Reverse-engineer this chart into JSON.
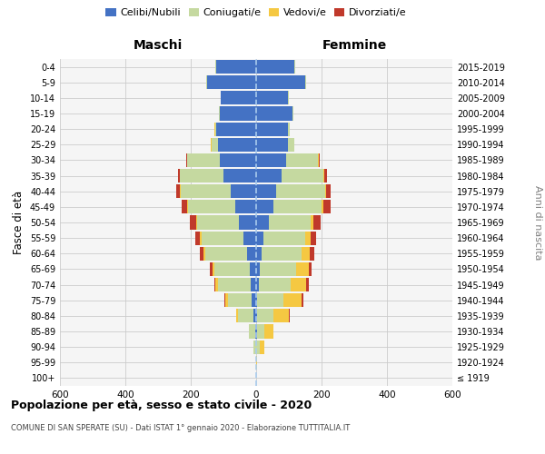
{
  "age_groups": [
    "100+",
    "95-99",
    "90-94",
    "85-89",
    "80-84",
    "75-79",
    "70-74",
    "65-69",
    "60-64",
    "55-59",
    "50-54",
    "45-49",
    "40-44",
    "35-39",
    "30-34",
    "25-29",
    "20-24",
    "15-19",
    "10-14",
    "5-9",
    "0-4"
  ],
  "birth_years": [
    "≤ 1919",
    "1920-1924",
    "1925-1929",
    "1930-1934",
    "1935-1939",
    "1940-1944",
    "1945-1949",
    "1950-1954",
    "1955-1959",
    "1960-1964",
    "1965-1969",
    "1970-1974",
    "1975-1979",
    "1980-1984",
    "1985-1989",
    "1990-1994",
    "1995-1999",
    "2000-2004",
    "2005-2009",
    "2010-2014",
    "2015-2019"
  ],
  "maschi": {
    "celibi": [
      0,
      0,
      1,
      3,
      8,
      14,
      18,
      20,
      28,
      38,
      52,
      65,
      78,
      100,
      112,
      118,
      122,
      112,
      108,
      150,
      122
    ],
    "coniugati": [
      1,
      1,
      7,
      18,
      48,
      72,
      98,
      108,
      128,
      128,
      128,
      142,
      152,
      132,
      98,
      18,
      4,
      2,
      1,
      2,
      2
    ],
    "vedovi": [
      0,
      0,
      1,
      2,
      5,
      8,
      8,
      5,
      5,
      5,
      3,
      3,
      3,
      2,
      2,
      2,
      1,
      0,
      0,
      1,
      0
    ],
    "divorziati": [
      0,
      0,
      0,
      0,
      1,
      2,
      5,
      8,
      12,
      15,
      20,
      18,
      12,
      5,
      2,
      1,
      0,
      0,
      0,
      0,
      0
    ]
  },
  "femmine": {
    "nubili": [
      0,
      0,
      1,
      2,
      4,
      4,
      8,
      10,
      18,
      22,
      38,
      52,
      62,
      78,
      92,
      98,
      98,
      112,
      98,
      150,
      118
    ],
    "coniugate": [
      0,
      1,
      10,
      22,
      48,
      78,
      98,
      112,
      122,
      128,
      128,
      148,
      148,
      128,
      98,
      18,
      4,
      2,
      1,
      2,
      2
    ],
    "vedove": [
      1,
      3,
      14,
      28,
      48,
      58,
      48,
      38,
      24,
      16,
      10,
      5,
      3,
      2,
      2,
      1,
      0,
      0,
      0,
      0,
      0
    ],
    "divorziate": [
      0,
      0,
      0,
      1,
      2,
      4,
      6,
      10,
      14,
      18,
      22,
      22,
      15,
      8,
      3,
      1,
      0,
      0,
      0,
      0,
      0
    ]
  },
  "colors": {
    "celibi": "#4472c4",
    "coniugati": "#c5d9a0",
    "vedovi": "#f5c842",
    "divorziati": "#c0392b"
  },
  "xlim": [
    -600,
    600
  ],
  "xticks": [
    -600,
    -400,
    -200,
    0,
    200,
    400,
    600
  ],
  "xticklabels": [
    "600",
    "400",
    "200",
    "0",
    "200",
    "400",
    "600"
  ],
  "title": "Popolazione per età, sesso e stato civile - 2020",
  "subtitle": "COMUNE DI SAN SPERATE (SU) - Dati ISTAT 1° gennaio 2020 - Elaborazione TUTTITALIA.IT",
  "ylabel_left": "Fasce di età",
  "ylabel_right": "Anni di nascita",
  "label_maschi": "Maschi",
  "label_femmine": "Femmine",
  "legend_labels": [
    "Celibi/Nubili",
    "Coniugati/e",
    "Vedovi/e",
    "Divorziati/e"
  ],
  "bg_color": "#f5f5f5",
  "grid_color": "#cccccc"
}
